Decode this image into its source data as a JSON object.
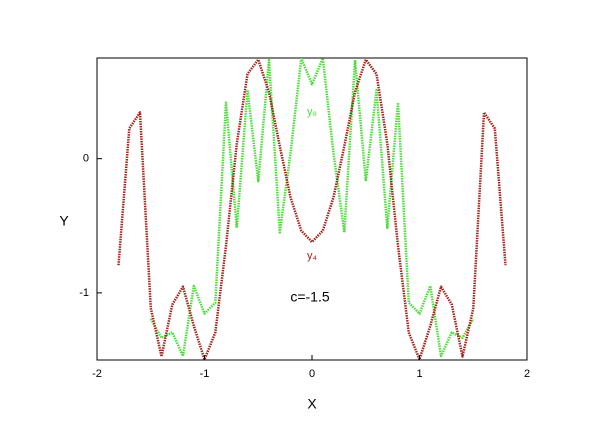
{
  "chart_data": {
    "type": "line",
    "xlabel": "X",
    "ylabel": "Y",
    "annotation": "c=-1.5",
    "x": [
      -1.8,
      -1.7,
      -1.6,
      -1.5,
      -1.4,
      -1.3,
      -1.2,
      -1.1,
      -1.0,
      -0.9,
      -0.8,
      -0.7,
      -0.6,
      -0.5,
      -0.4,
      -0.3,
      -0.2,
      -0.1,
      0,
      0.1,
      0.2,
      0.3,
      0.4,
      0.5,
      0.6,
      0.7,
      0.8,
      0.9,
      1.0,
      1.1,
      1.2,
      1.3,
      1.4,
      1.5,
      1.6,
      1.7,
      1.8
    ],
    "series": [
      {
        "name": "y₈",
        "color": "#4cdc3a",
        "values": [
          null,
          null,
          null,
          -1.193,
          -1.335,
          -1.294,
          -1.47,
          -0.949,
          -1.154,
          -1.073,
          0.417,
          -0.515,
          0.511,
          -0.168,
          0.734,
          -0.549,
          0.041,
          0.747,
          0.554,
          0.747,
          0.041,
          -0.549,
          0.734,
          -0.168,
          0.511,
          -0.515,
          0.417,
          -1.073,
          -1.154,
          -0.949,
          -1.47,
          -1.294,
          -1.335,
          -1.193,
          null,
          null,
          null
        ]
      },
      {
        "name": "y₄",
        "color": "#a3241a",
        "values": [
          -0.794,
          0.225,
          0.345,
          -1.114,
          -1.474,
          -1.087,
          -0.954,
          -1.245,
          -1.496,
          -1.296,
          -0.65,
          0.112,
          0.631,
          0.738,
          0.495,
          0.092,
          -0.288,
          -0.537,
          -0.621,
          -0.537,
          -0.288,
          0.092,
          0.495,
          0.738,
          0.631,
          0.112,
          -0.65,
          -1.296,
          -1.496,
          -1.245,
          -0.954,
          -1.087,
          -1.474,
          -1.114,
          0.345,
          0.225,
          -0.794
        ]
      }
    ],
    "xlim": [
      -2,
      2
    ],
    "xticks": [
      -2,
      -1,
      0,
      1,
      2
    ],
    "ylim": [
      -1.5,
      0.75
    ],
    "yticks": [
      -1,
      0
    ]
  }
}
